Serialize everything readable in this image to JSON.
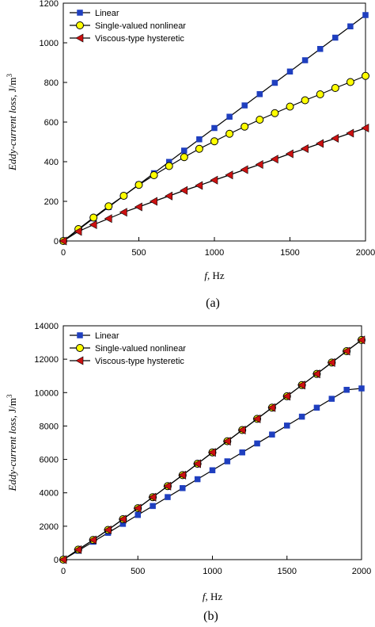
{
  "colors": {
    "linear": "#1f3fbf",
    "single": "#ffff00",
    "viscous": "#cc1111",
    "line": "#000000"
  },
  "legend_labels": [
    "Linear",
    "Single-valued nonlinear",
    "Viscous-type hysteretic"
  ],
  "chart_data": [
    {
      "type": "line",
      "caption": "(a)",
      "xlabel_italic": "f",
      "xlabel_unit": ", Hz",
      "ylabel_italic": "Eddy-current loss",
      "ylabel_unit": ", J/m",
      "ylabel_sup": "3",
      "xlim": [
        0,
        2000
      ],
      "ylim": [
        0,
        1200
      ],
      "xticks": [
        0,
        500,
        1000,
        1500,
        2000
      ],
      "yticks": [
        0,
        200,
        400,
        600,
        800,
        1000,
        1200
      ],
      "legend": "top-left",
      "grid": false,
      "series": [
        {
          "name": "Linear",
          "marker": "square",
          "x": [
            0,
            100,
            200,
            300,
            400,
            500,
            600,
            700,
            800,
            900,
            1000,
            1100,
            1200,
            1300,
            1400,
            1500,
            1600,
            1700,
            1800,
            1900,
            2000
          ],
          "y": [
            0,
            57,
            114,
            171,
            228,
            285,
            342,
            399,
            456,
            513,
            570,
            627,
            684,
            741,
            798,
            855,
            912,
            969,
            1026,
            1083,
            1140
          ]
        },
        {
          "name": "Single-valued nonlinear",
          "marker": "circle",
          "x": [
            0,
            100,
            200,
            300,
            400,
            500,
            600,
            700,
            800,
            900,
            1000,
            1100,
            1200,
            1300,
            1400,
            1500,
            1600,
            1700,
            1800,
            1900,
            2000
          ],
          "y": [
            0,
            60,
            118,
            175,
            228,
            283,
            332,
            378,
            423,
            465,
            503,
            541,
            577,
            612,
            645,
            678,
            710,
            740,
            772,
            802,
            833
          ]
        },
        {
          "name": "Viscous-type hysteretic",
          "marker": "triangle-left",
          "x": [
            0,
            100,
            200,
            300,
            400,
            500,
            600,
            700,
            800,
            900,
            1000,
            1100,
            1200,
            1300,
            1400,
            1500,
            1600,
            1700,
            1800,
            1900,
            2000
          ],
          "y": [
            0,
            48,
            82,
            113,
            145,
            172,
            200,
            227,
            255,
            280,
            307,
            333,
            360,
            386,
            413,
            440,
            466,
            492,
            518,
            544,
            570
          ]
        }
      ]
    },
    {
      "type": "line",
      "caption": "(b)",
      "xlabel_italic": "f",
      "xlabel_unit": ", Hz",
      "ylabel_italic": "Eddy-current loss",
      "ylabel_unit": ", J/m",
      "ylabel_sup": "3",
      "xlim": [
        0,
        2000
      ],
      "ylim": [
        0,
        14000
      ],
      "xticks": [
        0,
        500,
        1000,
        1500,
        2000
      ],
      "yticks": [
        0,
        2000,
        4000,
        6000,
        8000,
        10000,
        12000,
        14000
      ],
      "legend": "top-left",
      "grid": false,
      "series": [
        {
          "name": "Linear",
          "marker": "square",
          "x": [
            0,
            100,
            200,
            300,
            400,
            500,
            600,
            700,
            800,
            900,
            1000,
            1100,
            1200,
            1300,
            1400,
            1500,
            1600,
            1700,
            1800,
            1900,
            2000
          ],
          "y": [
            0,
            535,
            1070,
            1605,
            2140,
            2675,
            3210,
            3745,
            4280,
            4815,
            5350,
            5885,
            6420,
            6955,
            7490,
            8025,
            8560,
            9095,
            9630,
            10165,
            10250
          ]
        },
        {
          "name": "Single-valued nonlinear",
          "marker": "circle",
          "x": [
            0,
            100,
            200,
            300,
            400,
            500,
            600,
            700,
            800,
            900,
            1000,
            1100,
            1200,
            1300,
            1400,
            1500,
            1600,
            1700,
            1800,
            1900,
            2000
          ],
          "y": [
            0,
            600,
            1180,
            1780,
            2420,
            3080,
            3740,
            4400,
            5060,
            5740,
            6420,
            7090,
            7760,
            8430,
            9100,
            9780,
            10450,
            11120,
            11800,
            12480,
            13150
          ]
        },
        {
          "name": "Viscous-type hysteretic",
          "marker": "triangle-left",
          "x": [
            0,
            100,
            200,
            300,
            400,
            500,
            600,
            700,
            800,
            900,
            1000,
            1100,
            1200,
            1300,
            1400,
            1500,
            1600,
            1700,
            1800,
            1900,
            2000
          ],
          "y": [
            0,
            600,
            1180,
            1780,
            2420,
            3080,
            3740,
            4400,
            5060,
            5740,
            6420,
            7090,
            7760,
            8430,
            9100,
            9780,
            10450,
            11120,
            11800,
            12480,
            13150
          ]
        }
      ]
    }
  ]
}
